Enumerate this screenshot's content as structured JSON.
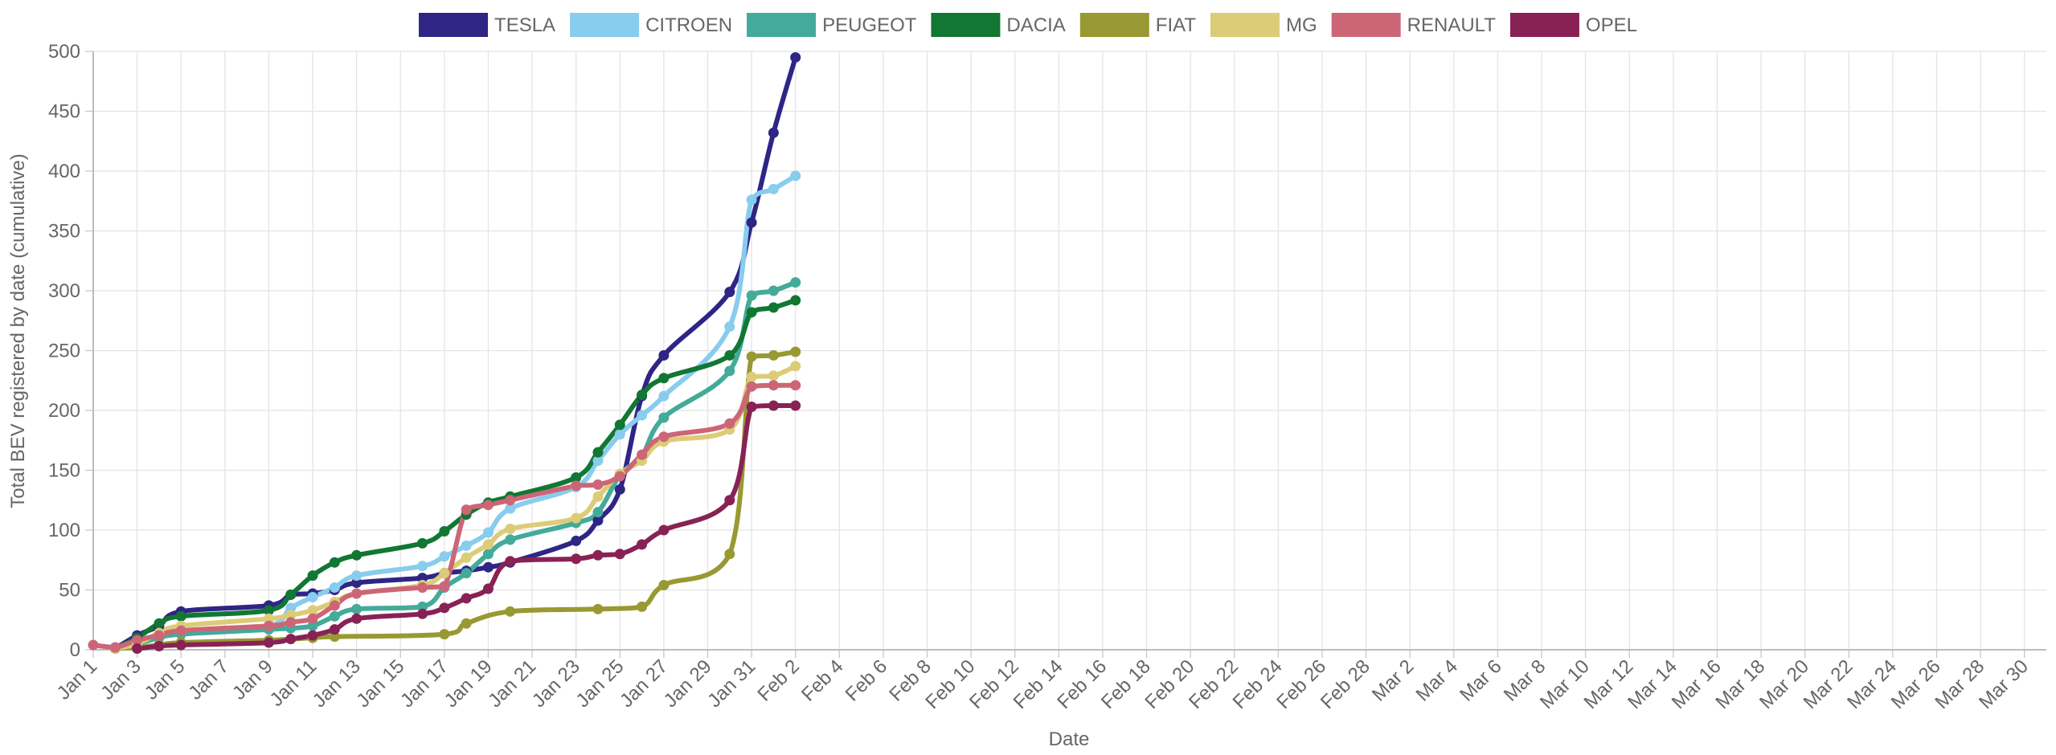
{
  "chart_data": {
    "type": "line",
    "title": "",
    "xlabel": "Date",
    "ylabel": "Total BEV registered by date (cumulative)",
    "ylim": [
      0,
      500
    ],
    "y_ticks": [
      0,
      50,
      100,
      150,
      200,
      250,
      300,
      350,
      400,
      450,
      500
    ],
    "xlim": [
      "Jan 1",
      "Mar 31"
    ],
    "x_tick_labels": [
      "Jan 1",
      "Jan 3",
      "Jan 5",
      "Jan 7",
      "Jan 9",
      "Jan 11",
      "Jan 13",
      "Jan 15",
      "Jan 17",
      "Jan 19",
      "Jan 21",
      "Jan 23",
      "Jan 25",
      "Jan 27",
      "Jan 29",
      "Jan 31",
      "Feb 2",
      "Feb 4",
      "Feb 6",
      "Feb 8",
      "Feb 10",
      "Feb 12",
      "Feb 14",
      "Feb 16",
      "Feb 18",
      "Feb 20",
      "Feb 22",
      "Feb 24",
      "Feb 26",
      "Feb 28",
      "Mar 2",
      "Mar 4",
      "Mar 6",
      "Mar 8",
      "Mar 10",
      "Mar 12",
      "Mar 14",
      "Mar 16",
      "Mar 18",
      "Mar 20",
      "Mar 22",
      "Mar 24",
      "Mar 26",
      "Mar 28",
      "Mar 30"
    ],
    "grid": true,
    "legend_position": "top",
    "series": [
      {
        "name": "TESLA",
        "color": "#2e2585",
        "points": [
          [
            "Jan 2",
            1
          ],
          [
            "Jan 3",
            12
          ],
          [
            "Jan 4",
            20
          ],
          [
            "Jan 5",
            32
          ],
          [
            "Jan 9",
            37
          ],
          [
            "Jan 10",
            46
          ],
          [
            "Jan 11",
            47
          ],
          [
            "Jan 12",
            50
          ],
          [
            "Jan 13",
            56
          ],
          [
            "Jan 16",
            60
          ],
          [
            "Jan 17",
            64
          ],
          [
            "Jan 18",
            66
          ],
          [
            "Jan 19",
            69
          ],
          [
            "Jan 20",
            73
          ],
          [
            "Jan 23",
            91
          ],
          [
            "Jan 24",
            108
          ],
          [
            "Jan 25",
            134
          ],
          [
            "Jan 26",
            212
          ],
          [
            "Jan 27",
            246
          ],
          [
            "Jan 30",
            299
          ],
          [
            "Jan 31",
            357
          ],
          [
            "Feb 1",
            432
          ],
          [
            "Feb 2",
            495
          ]
        ]
      },
      {
        "name": "CITROEN",
        "color": "#88ccee",
        "points": [
          [
            "Jan 2",
            1
          ],
          [
            "Jan 3",
            6
          ],
          [
            "Jan 4",
            12
          ],
          [
            "Jan 5",
            15
          ],
          [
            "Jan 9",
            20
          ],
          [
            "Jan 10",
            35
          ],
          [
            "Jan 11",
            44
          ],
          [
            "Jan 12",
            52
          ],
          [
            "Jan 13",
            62
          ],
          [
            "Jan 16",
            70
          ],
          [
            "Jan 17",
            78
          ],
          [
            "Jan 18",
            87
          ],
          [
            "Jan 19",
            98
          ],
          [
            "Jan 20",
            118
          ],
          [
            "Jan 23",
            136
          ],
          [
            "Jan 24",
            158
          ],
          [
            "Jan 25",
            180
          ],
          [
            "Jan 26",
            196
          ],
          [
            "Jan 27",
            212
          ],
          [
            "Jan 30",
            270
          ],
          [
            "Jan 31",
            376
          ],
          [
            "Feb 1",
            385
          ],
          [
            "Feb 2",
            396
          ]
        ]
      },
      {
        "name": "PEUGEOT",
        "color": "#44aa99",
        "points": [
          [
            "Jan 2",
            1
          ],
          [
            "Jan 3",
            5
          ],
          [
            "Jan 4",
            10
          ],
          [
            "Jan 5",
            13
          ],
          [
            "Jan 9",
            17
          ],
          [
            "Jan 10",
            18
          ],
          [
            "Jan 11",
            20
          ],
          [
            "Jan 12",
            28
          ],
          [
            "Jan 13",
            34
          ],
          [
            "Jan 16",
            36
          ],
          [
            "Jan 17",
            52
          ],
          [
            "Jan 18",
            64
          ],
          [
            "Jan 19",
            80
          ],
          [
            "Jan 20",
            92
          ],
          [
            "Jan 23",
            106
          ],
          [
            "Jan 24",
            115
          ],
          [
            "Jan 25",
            146
          ],
          [
            "Jan 26",
            162
          ],
          [
            "Jan 27",
            194
          ],
          [
            "Jan 30",
            233
          ],
          [
            "Jan 31",
            296
          ],
          [
            "Feb 1",
            300
          ],
          [
            "Feb 2",
            307
          ]
        ]
      },
      {
        "name": "DACIA",
        "color": "#117733",
        "points": [
          [
            "Jan 2",
            1
          ],
          [
            "Jan 3",
            10
          ],
          [
            "Jan 4",
            22
          ],
          [
            "Jan 5",
            28
          ],
          [
            "Jan 9",
            33
          ],
          [
            "Jan 10",
            46
          ],
          [
            "Jan 11",
            62
          ],
          [
            "Jan 12",
            73
          ],
          [
            "Jan 13",
            79
          ],
          [
            "Jan 16",
            89
          ],
          [
            "Jan 17",
            99
          ],
          [
            "Jan 18",
            113
          ],
          [
            "Jan 19",
            123
          ],
          [
            "Jan 20",
            128
          ],
          [
            "Jan 23",
            144
          ],
          [
            "Jan 24",
            165
          ],
          [
            "Jan 25",
            188
          ],
          [
            "Jan 26",
            213
          ],
          [
            "Jan 27",
            227
          ],
          [
            "Jan 30",
            246
          ],
          [
            "Jan 31",
            282
          ],
          [
            "Feb 1",
            286
          ],
          [
            "Feb 2",
            292
          ]
        ]
      },
      {
        "name": "FIAT",
        "color": "#999933",
        "points": [
          [
            "Jan 2",
            1
          ],
          [
            "Jan 3",
            2
          ],
          [
            "Jan 4",
            4
          ],
          [
            "Jan 5",
            6
          ],
          [
            "Jan 9",
            8
          ],
          [
            "Jan 10",
            9
          ],
          [
            "Jan 11",
            10
          ],
          [
            "Jan 12",
            11
          ],
          [
            "Jan 17",
            13
          ],
          [
            "Jan 18",
            22
          ],
          [
            "Jan 20",
            32
          ],
          [
            "Jan 24",
            34
          ],
          [
            "Jan 26",
            36
          ],
          [
            "Jan 27",
            54
          ],
          [
            "Jan 30",
            80
          ],
          [
            "Jan 31",
            245
          ],
          [
            "Feb 1",
            246
          ],
          [
            "Feb 2",
            249
          ]
        ]
      },
      {
        "name": "MG",
        "color": "#ddcc77",
        "points": [
          [
            "Jan 2",
            1
          ],
          [
            "Jan 3",
            5
          ],
          [
            "Jan 4",
            14
          ],
          [
            "Jan 5",
            20
          ],
          [
            "Jan 9",
            26
          ],
          [
            "Jan 10",
            29
          ],
          [
            "Jan 11",
            33
          ],
          [
            "Jan 12",
            40
          ],
          [
            "Jan 13",
            47
          ],
          [
            "Jan 16",
            54
          ],
          [
            "Jan 17",
            64
          ],
          [
            "Jan 18",
            77
          ],
          [
            "Jan 19",
            88
          ],
          [
            "Jan 20",
            101
          ],
          [
            "Jan 23",
            110
          ],
          [
            "Jan 24",
            128
          ],
          [
            "Jan 25",
            147
          ],
          [
            "Jan 26",
            158
          ],
          [
            "Jan 27",
            174
          ],
          [
            "Jan 30",
            184
          ],
          [
            "Jan 31",
            228
          ],
          [
            "Feb 1",
            229
          ],
          [
            "Feb 2",
            237
          ]
        ]
      },
      {
        "name": "RENAULT",
        "color": "#cc6677",
        "points": [
          [
            "Jan 1",
            4
          ],
          [
            "Jan 2",
            2
          ],
          [
            "Jan 3",
            8
          ],
          [
            "Jan 4",
            12
          ],
          [
            "Jan 5",
            16
          ],
          [
            "Jan 9",
            20
          ],
          [
            "Jan 10",
            23
          ],
          [
            "Jan 11",
            26
          ],
          [
            "Jan 12",
            37
          ],
          [
            "Jan 13",
            47
          ],
          [
            "Jan 16",
            52
          ],
          [
            "Jan 17",
            53
          ],
          [
            "Jan 18",
            117
          ],
          [
            "Jan 19",
            121
          ],
          [
            "Jan 20",
            125
          ],
          [
            "Jan 23",
            137
          ],
          [
            "Jan 24",
            138
          ],
          [
            "Jan 25",
            145
          ],
          [
            "Jan 26",
            163
          ],
          [
            "Jan 27",
            178
          ],
          [
            "Jan 30",
            189
          ],
          [
            "Jan 31",
            220
          ],
          [
            "Feb 1",
            221
          ],
          [
            "Feb 2",
            221
          ]
        ]
      },
      {
        "name": "OPEL",
        "color": "#882255",
        "points": [
          [
            "Jan 3",
            1
          ],
          [
            "Jan 4",
            3
          ],
          [
            "Jan 5",
            4
          ],
          [
            "Jan 9",
            6
          ],
          [
            "Jan 10",
            9
          ],
          [
            "Jan 11",
            12
          ],
          [
            "Jan 12",
            17
          ],
          [
            "Jan 13",
            26
          ],
          [
            "Jan 16",
            30
          ],
          [
            "Jan 17",
            35
          ],
          [
            "Jan 18",
            43
          ],
          [
            "Jan 19",
            51
          ],
          [
            "Jan 20",
            74
          ],
          [
            "Jan 23",
            76
          ],
          [
            "Jan 24",
            79
          ],
          [
            "Jan 25",
            80
          ],
          [
            "Jan 26",
            88
          ],
          [
            "Jan 27",
            100
          ],
          [
            "Jan 30",
            125
          ],
          [
            "Jan 31",
            203
          ],
          [
            "Feb 1",
            204
          ],
          [
            "Feb 2",
            204
          ]
        ]
      }
    ]
  }
}
